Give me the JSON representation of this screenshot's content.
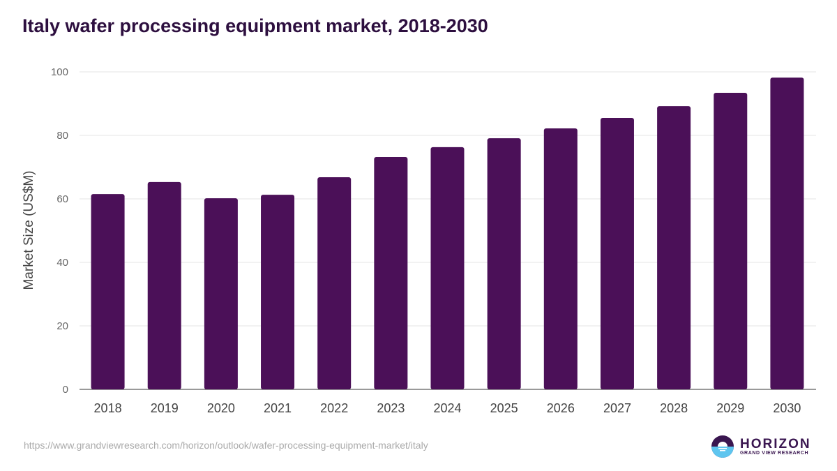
{
  "chart_data": {
    "type": "bar",
    "title": "Italy wafer processing equipment market, 2018-2030",
    "xlabel": "",
    "ylabel": "Market Size (US$M)",
    "ylim": [
      0,
      100
    ],
    "yticks": [
      0,
      20,
      40,
      60,
      80,
      100
    ],
    "grid": true,
    "categories": [
      "2018",
      "2019",
      "2020",
      "2021",
      "2022",
      "2023",
      "2024",
      "2025",
      "2026",
      "2027",
      "2028",
      "2029",
      "2030"
    ],
    "values": [
      61.5,
      65.3,
      60.2,
      61.3,
      66.8,
      73.2,
      76.3,
      79.1,
      82.2,
      85.5,
      89.2,
      93.4,
      98.2
    ],
    "bar_color": "#4b1058"
  },
  "footer": {
    "url": "https://www.grandviewresearch.com/horizon/outlook/wafer-processing-equipment-market/italy",
    "logo_main": "HORIZON",
    "logo_sub": "GRAND VIEW RESEARCH"
  }
}
